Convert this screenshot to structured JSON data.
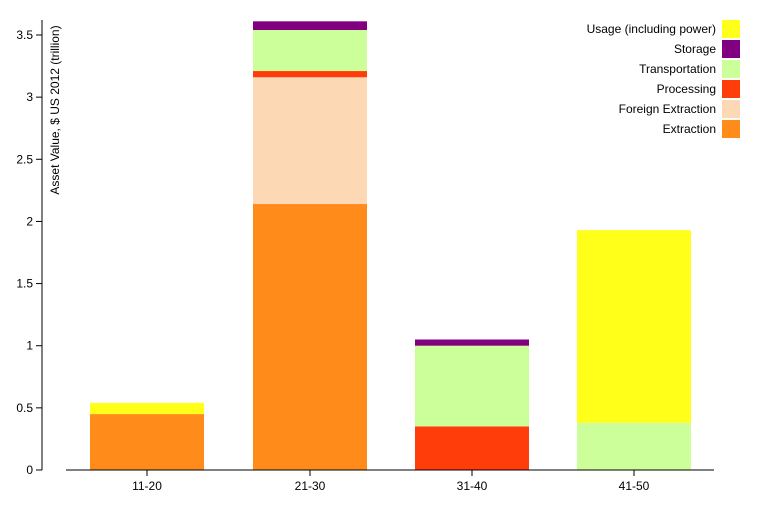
{
  "chart_data": {
    "type": "bar",
    "stacked": true,
    "categories": [
      "11-20",
      "21-30",
      "31-40",
      "41-50"
    ],
    "ylabel": "Asset Value, $ US 2012 (trillion)",
    "ylim": [
      0,
      3.6
    ],
    "yticks": [
      "0",
      "0.5",
      "1",
      "1.5",
      "2",
      "2.5",
      "3",
      "3.5"
    ],
    "grid": false,
    "legend_position": "top-right",
    "series": [
      {
        "name": "Extraction",
        "color": "#ff8c1a",
        "values": [
          0.45,
          2.14,
          0,
          0
        ]
      },
      {
        "name": "Foreign Extraction",
        "color": "#fdd8b4",
        "values": [
          0,
          1.02,
          0,
          0
        ]
      },
      {
        "name": "Processing",
        "color": "#ff3d0a",
        "values": [
          0,
          0.05,
          0.35,
          0
        ]
      },
      {
        "name": "Transportation",
        "color": "#ccff99",
        "values": [
          0,
          0.33,
          0.65,
          0.38
        ]
      },
      {
        "name": "Storage",
        "color": "#800080",
        "values": [
          0,
          0.07,
          0.05,
          0
        ]
      },
      {
        "name": "Usage (including power)",
        "color": "#ffff1a",
        "values": [
          0.09,
          0,
          0,
          1.55
        ]
      }
    ]
  }
}
